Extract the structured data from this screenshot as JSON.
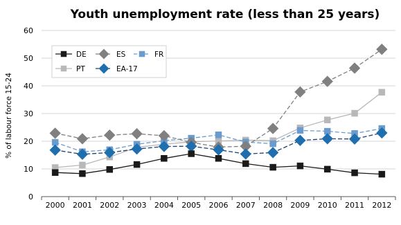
{
  "chart_data": {
    "type": "line",
    "title": "Youth unemployment rate (less than 25 years)",
    "xlabel": "",
    "ylabel": "% of labour force 15-24",
    "ylim": [
      0,
      60
    ],
    "yticks": [
      0,
      10,
      20,
      30,
      40,
      50,
      60
    ],
    "x": [
      "2000",
      "2001",
      "2002",
      "2003",
      "2004",
      "2005",
      "2006",
      "2007",
      "2008",
      "2009",
      "2010",
      "2011",
      "2012"
    ],
    "grid": "horizontal",
    "legend_position": "top-left",
    "legend_order": [
      "DE",
      "ES",
      "FR",
      "PT",
      "EA-17"
    ],
    "series": [
      {
        "name": "DE",
        "color": "#1a1a1a",
        "line_color": "#1a1a1a",
        "marker": "square",
        "dash": "solid",
        "values": [
          8.7,
          8.3,
          9.8,
          11.6,
          13.8,
          15.5,
          13.8,
          11.9,
          10.6,
          11.1,
          9.9,
          8.6,
          8.1
        ]
      },
      {
        "name": "ES",
        "color": "#808080",
        "line_color": "#808080",
        "marker": "diamond",
        "dash": "dashed",
        "values": [
          22.9,
          20.9,
          22.2,
          22.7,
          22.0,
          19.6,
          17.9,
          18.2,
          24.6,
          37.8,
          41.6,
          46.4,
          53.2
        ]
      },
      {
        "name": "FR",
        "color": "#6a9bcf",
        "line_color": "#6a9bcf",
        "marker": "square",
        "dash": "dashed",
        "values": [
          19.6,
          16.2,
          16.9,
          18.9,
          20.2,
          21.1,
          22.3,
          19.7,
          19.1,
          23.9,
          23.6,
          22.8,
          24.6
        ]
      },
      {
        "name": "PT",
        "color": "#b8b8b8",
        "line_color": "#b8b8b8",
        "marker": "square",
        "dash": "solid",
        "values": [
          10.5,
          11.4,
          14.3,
          17.8,
          18.9,
          19.8,
          20.1,
          20.4,
          20.2,
          24.8,
          27.7,
          30.1,
          37.7
        ]
      },
      {
        "name": "EA-17",
        "color": "#1f6fae",
        "line_color": "#1a3f73",
        "marker": "diamond",
        "dash": "dashed",
        "values": [
          16.8,
          15.3,
          15.9,
          17.2,
          18.1,
          18.2,
          16.9,
          15.4,
          15.9,
          20.3,
          20.9,
          20.8,
          23.0
        ]
      }
    ]
  }
}
